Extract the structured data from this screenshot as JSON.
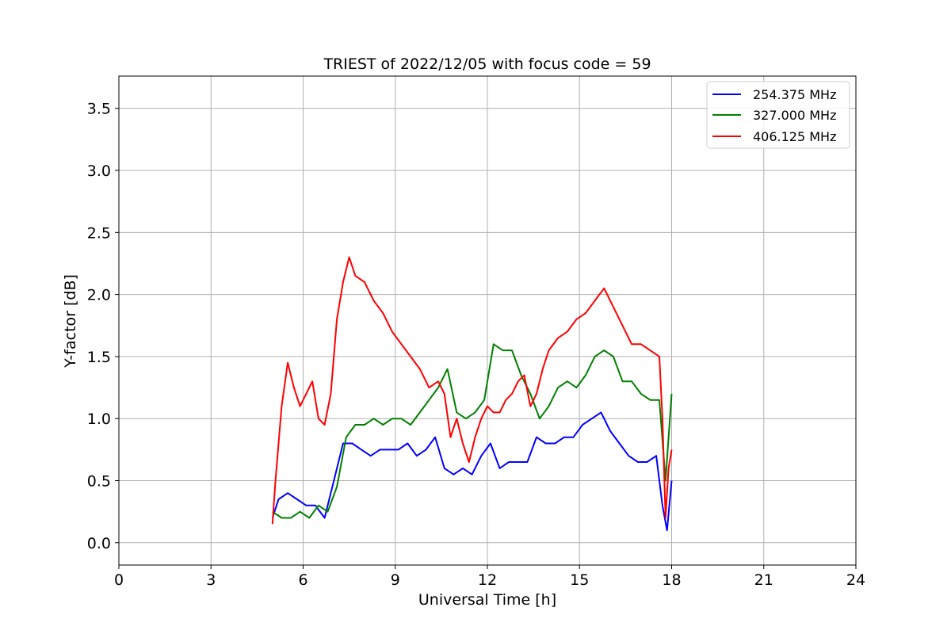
{
  "chart_data": {
    "type": "line",
    "title": "TRIEST of 2022/12/05 with focus code = 59",
    "xlabel": "Universal Time [h]",
    "ylabel": "Y-factor [dB]",
    "xlim": [
      0,
      24
    ],
    "ylim": [
      -0.18,
      3.76
    ],
    "x_ticks": [
      0,
      3,
      6,
      9,
      12,
      15,
      18,
      21,
      24
    ],
    "x_tick_labels": [
      "0",
      "3",
      "6",
      "9",
      "12",
      "15",
      "18",
      "21",
      "24"
    ],
    "y_ticks": [
      0.0,
      0.5,
      1.0,
      1.5,
      2.0,
      2.5,
      3.0,
      3.5
    ],
    "y_tick_labels": [
      "0.0",
      "0.5",
      "1.0",
      "1.5",
      "2.0",
      "2.5",
      "3.0",
      "3.5"
    ],
    "grid": true,
    "legend_position": "top-right",
    "series": [
      {
        "name": "254.375 MHz",
        "color": "#0000ff",
        "x": [
          5.0,
          5.2,
          5.5,
          5.8,
          6.1,
          6.4,
          6.7,
          7.0,
          7.3,
          7.6,
          7.9,
          8.2,
          8.5,
          8.8,
          9.1,
          9.4,
          9.7,
          10.0,
          10.3,
          10.6,
          10.9,
          11.2,
          11.5,
          11.8,
          12.1,
          12.4,
          12.7,
          13.0,
          13.3,
          13.6,
          13.9,
          14.2,
          14.5,
          14.8,
          15.1,
          15.4,
          15.7,
          16.0,
          16.3,
          16.6,
          16.9,
          17.2,
          17.5,
          17.7,
          17.85,
          18.0
        ],
        "y": [
          0.2,
          0.35,
          0.4,
          0.35,
          0.3,
          0.3,
          0.2,
          0.5,
          0.8,
          0.8,
          0.75,
          0.7,
          0.75,
          0.75,
          0.75,
          0.8,
          0.7,
          0.75,
          0.85,
          0.6,
          0.55,
          0.6,
          0.55,
          0.7,
          0.8,
          0.6,
          0.65,
          0.65,
          0.65,
          0.85,
          0.8,
          0.8,
          0.85,
          0.85,
          0.95,
          1.0,
          1.05,
          0.9,
          0.8,
          0.7,
          0.65,
          0.65,
          0.7,
          0.3,
          0.1,
          0.5
        ]
      },
      {
        "name": "327.000 MHz",
        "color": "#008000",
        "x": [
          5.0,
          5.3,
          5.6,
          5.9,
          6.2,
          6.5,
          6.8,
          7.1,
          7.4,
          7.7,
          8.0,
          8.3,
          8.6,
          8.9,
          9.2,
          9.5,
          9.8,
          10.1,
          10.4,
          10.7,
          11.0,
          11.3,
          11.6,
          11.9,
          12.2,
          12.5,
          12.8,
          13.1,
          13.4,
          13.7,
          14.0,
          14.3,
          14.6,
          14.9,
          15.2,
          15.5,
          15.8,
          16.1,
          16.4,
          16.7,
          17.0,
          17.3,
          17.6,
          17.8,
          18.0
        ],
        "y": [
          0.25,
          0.2,
          0.2,
          0.25,
          0.2,
          0.3,
          0.25,
          0.45,
          0.85,
          0.95,
          0.95,
          1.0,
          0.95,
          1.0,
          1.0,
          0.95,
          1.05,
          1.15,
          1.25,
          1.4,
          1.05,
          1.0,
          1.05,
          1.15,
          1.6,
          1.55,
          1.55,
          1.35,
          1.2,
          1.0,
          1.1,
          1.25,
          1.3,
          1.25,
          1.35,
          1.5,
          1.55,
          1.5,
          1.3,
          1.3,
          1.2,
          1.15,
          1.15,
          0.5,
          1.2
        ]
      },
      {
        "name": "406.125 MHz",
        "color": "#ff0000",
        "x": [
          5.0,
          5.1,
          5.3,
          5.5,
          5.7,
          5.9,
          6.1,
          6.3,
          6.5,
          6.7,
          6.9,
          7.1,
          7.3,
          7.5,
          7.7,
          8.0,
          8.3,
          8.6,
          8.9,
          9.2,
          9.5,
          9.8,
          10.1,
          10.4,
          10.6,
          10.8,
          11.0,
          11.2,
          11.4,
          11.6,
          11.8,
          12.0,
          12.2,
          12.4,
          12.6,
          12.8,
          13.0,
          13.2,
          13.4,
          13.6,
          13.8,
          14.0,
          14.3,
          14.6,
          14.9,
          15.2,
          15.5,
          15.8,
          16.1,
          16.4,
          16.7,
          17.0,
          17.3,
          17.6,
          17.7,
          17.8,
          17.9,
          18.0
        ],
        "y": [
          0.15,
          0.5,
          1.1,
          1.45,
          1.25,
          1.1,
          1.2,
          1.3,
          1.0,
          0.95,
          1.2,
          1.8,
          2.1,
          2.3,
          2.15,
          2.1,
          1.95,
          1.85,
          1.7,
          1.6,
          1.5,
          1.4,
          1.25,
          1.3,
          1.2,
          0.85,
          1.0,
          0.8,
          0.65,
          0.85,
          1.0,
          1.1,
          1.05,
          1.05,
          1.15,
          1.2,
          1.3,
          1.35,
          1.1,
          1.2,
          1.4,
          1.55,
          1.65,
          1.7,
          1.8,
          1.85,
          1.95,
          2.05,
          1.9,
          1.75,
          1.6,
          1.6,
          1.55,
          1.5,
          1.0,
          0.2,
          0.6,
          0.75
        ]
      }
    ]
  }
}
